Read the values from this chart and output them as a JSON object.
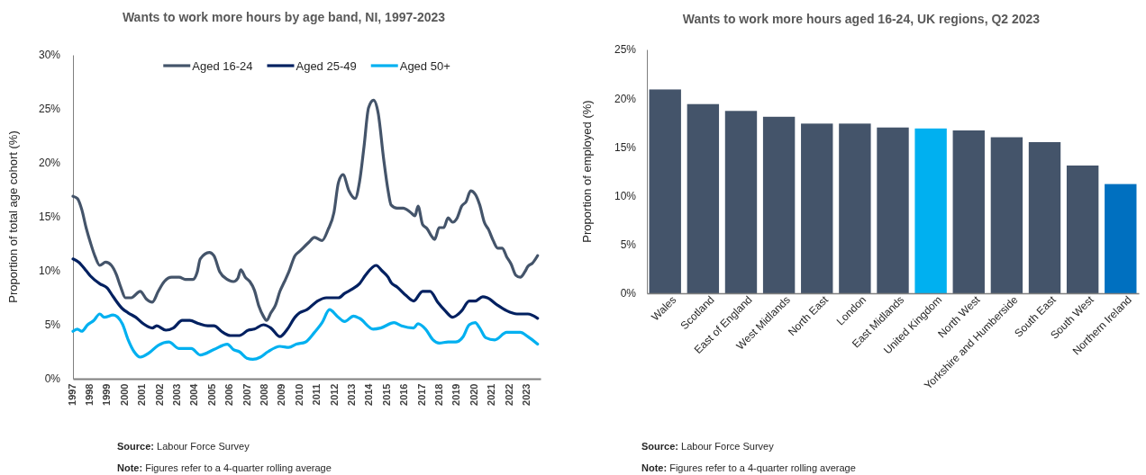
{
  "chart_data": [
    {
      "type": "line",
      "title": "Wants to work more hours by age band, NI, 1997-2023",
      "ylabel": "Proportion of total age cohort (%)",
      "legend": "top",
      "grid": false,
      "line_style": "solid",
      "marker": "none",
      "xlim": [
        1997,
        2023.75
      ],
      "xticks": [
        1997,
        1998,
        1999,
        2000,
        2001,
        2002,
        2003,
        2004,
        2005,
        2006,
        2007,
        2008,
        2009,
        2010,
        2011,
        2012,
        2013,
        2014,
        2015,
        2016,
        2017,
        2018,
        2019,
        2020,
        2021,
        2022,
        2023
      ],
      "ylim": [
        0,
        30
      ],
      "yticks": [
        {
          "value": 0,
          "label": "0%"
        },
        {
          "value": 5,
          "label": "5%"
        },
        {
          "value": 10,
          "label": "10%"
        },
        {
          "value": 15,
          "label": "15%"
        },
        {
          "value": 20,
          "label": "20%"
        },
        {
          "value": 25,
          "label": "25%"
        },
        {
          "value": 30,
          "label": "30%"
        }
      ],
      "series": [
        {
          "name": "Aged 16-24",
          "color": "#44546a",
          "x": [
            1997.0,
            1997.25,
            1997.5,
            1997.75,
            1998.0,
            1998.27,
            1998.53,
            1998.87,
            1999.2,
            1999.47,
            1999.73,
            2000.0,
            2000.33,
            2000.85,
            2001.19,
            2001.54,
            2001.88,
            2002.22,
            2002.65,
            2003.08,
            2003.43,
            2003.86,
            2004.11,
            2004.28,
            2004.8,
            2005.06,
            2005.4,
            2005.83,
            2006.18,
            2006.43,
            2006.6,
            2006.86,
            2007.12,
            2007.38,
            2007.64,
            2007.89,
            2008.07,
            2008.32,
            2008.58,
            2008.84,
            2009.1,
            2009.35,
            2009.7,
            2009.96,
            2010.47,
            2010.82,
            2011.25,
            2011.59,
            2011.93,
            2012.19,
            2012.45,
            2012.79,
            2013.14,
            2013.39,
            2013.65,
            2013.91,
            2014.2,
            2014.46,
            2014.77,
            2015.03,
            2015.2,
            2015.54,
            2015.89,
            2016.32,
            2016.57,
            2016.74,
            2017.0,
            2017.26,
            2017.52,
            2017.69,
            2017.95,
            2018.21,
            2018.46,
            2018.72,
            2018.98,
            2019.24,
            2019.49,
            2019.75,
            2020.01,
            2020.27,
            2020.53,
            2020.78,
            2021.04,
            2021.3,
            2021.56,
            2021.81,
            2022.07,
            2022.33,
            2022.59,
            2022.85,
            2023.02,
            2023.28,
            2023.58
          ],
          "values": [
            16.9,
            16.7,
            15.7,
            14.0,
            12.6,
            11.3,
            10.5,
            10.8,
            10.5,
            9.7,
            8.5,
            7.5,
            7.5,
            8.1,
            7.4,
            7.1,
            8.1,
            9.0,
            9.4,
            9.4,
            9.2,
            9.2,
            9.9,
            11.1,
            11.7,
            11.4,
            9.9,
            9.2,
            9.0,
            9.3,
            10.1,
            9.4,
            9.0,
            8.2,
            6.7,
            5.8,
            5.4,
            6.1,
            6.8,
            8.1,
            9.0,
            9.9,
            11.4,
            11.8,
            12.6,
            13.1,
            12.8,
            13.8,
            15.4,
            18.2,
            18.9,
            17.4,
            16.7,
            18.2,
            21.5,
            25.1,
            25.8,
            24.6,
            20.4,
            17.4,
            16.1,
            15.8,
            15.8,
            15.4,
            15.1,
            16.0,
            14.3,
            13.9,
            13.2,
            12.9,
            14.0,
            14.0,
            14.9,
            14.5,
            14.9,
            16.0,
            16.4,
            17.4,
            17.1,
            16.1,
            14.5,
            13.8,
            12.8,
            12.1,
            12.1,
            11.3,
            10.6,
            9.6,
            9.4,
            9.9,
            10.4,
            10.7,
            11.4
          ]
        },
        {
          "name": "Aged 25-49",
          "color": "#002060",
          "x": [
            1997.0,
            1997.33,
            1997.76,
            1998.01,
            1998.53,
            1998.96,
            1999.3,
            1999.82,
            2000.16,
            2000.59,
            2001.02,
            2001.54,
            2001.79,
            2002.31,
            2002.74,
            2003.25,
            2003.68,
            2004.2,
            2004.71,
            2005.06,
            2005.57,
            2006.0,
            2006.52,
            2007.03,
            2007.38,
            2007.89,
            2008.32,
            2008.84,
            2009.27,
            2009.7,
            2009.96,
            2010.39,
            2010.99,
            2011.5,
            2012.19,
            2012.54,
            2012.97,
            2013.39,
            2013.74,
            2014.34,
            2014.68,
            2015.03,
            2015.2,
            2015.54,
            2016.06,
            2016.49,
            2017.0,
            2017.43,
            2017.86,
            2018.29,
            2018.72,
            2019.24,
            2019.67,
            2020.01,
            2020.44,
            2020.7,
            2021.3,
            2021.81,
            2022.41,
            2023.02,
            2023.58
          ],
          "values": [
            11.1,
            10.8,
            10.0,
            9.5,
            8.8,
            8.4,
            7.6,
            6.5,
            6.1,
            5.7,
            5.1,
            4.7,
            4.9,
            4.5,
            4.7,
            5.4,
            5.4,
            5.1,
            4.9,
            4.9,
            4.3,
            4.0,
            4.0,
            4.5,
            4.6,
            5.0,
            4.7,
            3.9,
            4.6,
            5.7,
            6.1,
            6.4,
            7.2,
            7.5,
            7.5,
            7.9,
            8.3,
            8.8,
            9.6,
            10.5,
            10.0,
            9.4,
            8.9,
            8.5,
            7.7,
            7.2,
            8.1,
            8.1,
            7.1,
            6.3,
            5.7,
            6.3,
            7.2,
            7.2,
            7.6,
            7.5,
            6.8,
            6.3,
            6.0,
            6.0,
            5.6
          ]
        },
        {
          "name": "Aged 50+",
          "color": "#00b0f0",
          "x": [
            1997.0,
            1997.25,
            1997.5,
            1997.84,
            1998.19,
            1998.53,
            1998.79,
            1999.3,
            1999.82,
            2000.16,
            2000.5,
            2000.85,
            2001.36,
            2001.88,
            2002.48,
            2003.08,
            2003.77,
            2004.28,
            2005.06,
            2005.83,
            2006.18,
            2006.52,
            2006.95,
            2007.29,
            2007.72,
            2008.15,
            2008.84,
            2009.35,
            2009.78,
            2010.3,
            2010.82,
            2011.25,
            2011.68,
            2012.11,
            2012.54,
            2013.05,
            2013.39,
            2014.17,
            2014.6,
            2015.37,
            2015.8,
            2016.49,
            2016.74,
            2017.17,
            2017.6,
            2017.95,
            2018.46,
            2018.89,
            2019.32,
            2019.67,
            2020.01,
            2020.27,
            2020.61,
            2021.13,
            2021.81,
            2022.16,
            2022.59,
            2023.02,
            2023.58
          ],
          "values": [
            4.4,
            4.6,
            4.4,
            5.0,
            5.4,
            6.0,
            5.7,
            5.9,
            5.1,
            3.6,
            2.5,
            2.0,
            2.4,
            3.1,
            3.4,
            2.8,
            2.8,
            2.2,
            2.7,
            3.2,
            2.7,
            2.5,
            1.9,
            1.8,
            2.0,
            2.5,
            3.0,
            2.9,
            3.2,
            3.4,
            4.3,
            5.2,
            6.4,
            5.8,
            5.3,
            5.8,
            5.6,
            4.6,
            4.7,
            5.2,
            4.9,
            4.7,
            5.1,
            4.6,
            3.6,
            3.3,
            3.4,
            3.4,
            3.9,
            5.0,
            5.2,
            4.7,
            3.8,
            3.6,
            4.3,
            4.3,
            4.3,
            3.9,
            3.2
          ]
        }
      ],
      "annotations": [
        "Source: Labour Force Survey",
        "Note: Figures refer to a 4-quarter rolling average"
      ]
    },
    {
      "type": "bar",
      "title": "Wants to work more hours aged 16-24, UK regions, Q2 2023",
      "ylabel": "Proportion of employed (%)",
      "grid": false,
      "categories": [
        "Wales",
        "Scotland",
        "East of England",
        "West Midlands",
        "North East",
        "London",
        "East Midlands",
        "United Kingdom",
        "North West",
        "Yorkshire and Humberside",
        "South East",
        "South West",
        "Northern Ireland"
      ],
      "values": [
        20.9,
        19.4,
        18.7,
        18.1,
        17.4,
        17.4,
        17.0,
        16.9,
        16.7,
        16.0,
        15.5,
        13.1,
        11.2
      ],
      "colors": [
        "#44546a",
        "#44546a",
        "#44546a",
        "#44546a",
        "#44546a",
        "#44546a",
        "#44546a",
        "#00b0f0",
        "#44546a",
        "#44546a",
        "#44546a",
        "#44546a",
        "#0070c0"
      ],
      "ylim": [
        0,
        25
      ],
      "yticks": [
        {
          "value": 0,
          "label": "0%"
        },
        {
          "value": 5,
          "label": "5%"
        },
        {
          "value": 10,
          "label": "10%"
        },
        {
          "value": 15,
          "label": "15%"
        },
        {
          "value": 20,
          "label": "20%"
        },
        {
          "value": 25,
          "label": "25%"
        }
      ],
      "annotations": [
        "Source: Labour Force Survey",
        "Note: Figures refer to a 4-quarter rolling average"
      ]
    }
  ]
}
